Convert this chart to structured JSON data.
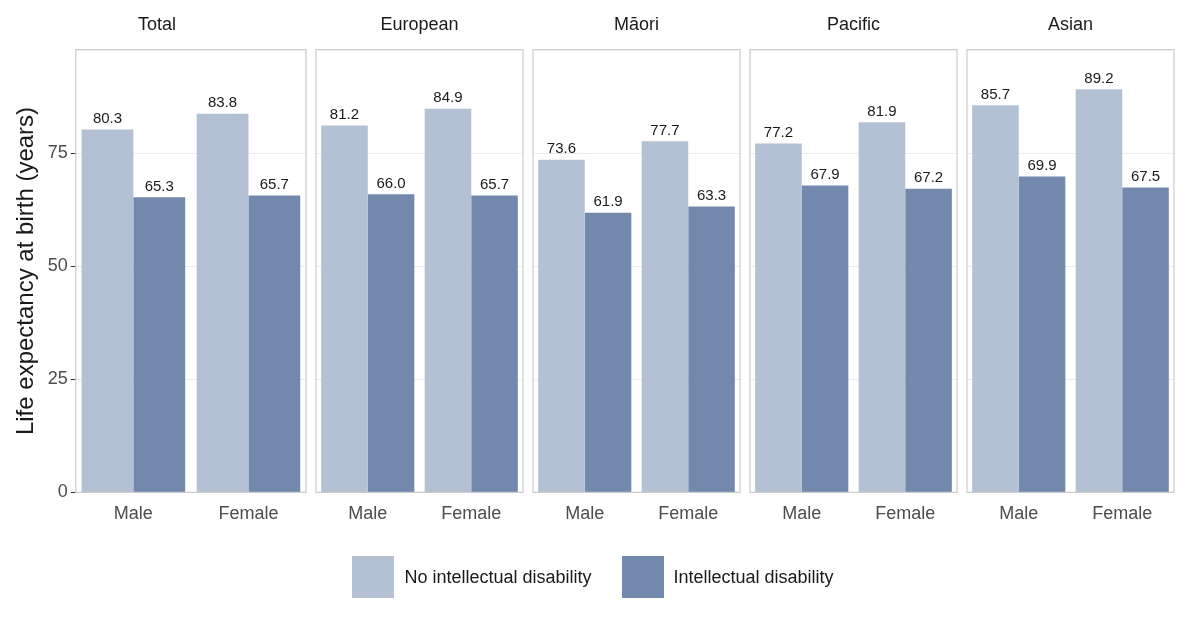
{
  "chart_data": [
    {
      "type": "bar",
      "title": "Total",
      "ylabel": "Life expectancy at birth (years)",
      "categories": [
        "Male",
        "Female"
      ],
      "ylim": [
        0,
        98
      ],
      "yticks": [
        0,
        25,
        50,
        75
      ],
      "grid": "y",
      "legend": "bottom",
      "series": [
        {
          "name": "No intellectual disability",
          "color": "#b4c0d3",
          "values": [
            80.3,
            83.8
          ],
          "value_labels": [
            "80.3",
            "83.8"
          ]
        },
        {
          "name": "Intellectual disability",
          "color": "#7288ac",
          "values": [
            65.3,
            65.7
          ],
          "value_labels": [
            "65.3",
            "65.7"
          ]
        }
      ]
    },
    {
      "type": "bar",
      "title": "European",
      "categories": [
        "Male",
        "Female"
      ],
      "ylim": [
        0,
        98
      ],
      "yticks": [
        0,
        25,
        50,
        75
      ],
      "grid": "y",
      "tick_labels": "x",
      "series": [
        {
          "color": "#b4c0d3",
          "values": [
            81.2,
            84.9
          ],
          "value_labels": [
            "81.2",
            "84.9"
          ]
        },
        {
          "color": "#7288ac",
          "values": [
            66.0,
            65.7
          ],
          "value_labels": [
            "66.0",
            "65.7"
          ]
        }
      ]
    },
    {
      "type": "bar",
      "title": "Māori",
      "categories": [
        "Male",
        "Female"
      ],
      "ylim": [
        0,
        98
      ],
      "yticks": [
        0,
        25,
        50,
        75
      ],
      "grid": "y",
      "tick_labels": "x",
      "series": [
        {
          "color": "#b4c0d3",
          "values": [
            73.6,
            77.7
          ],
          "value_labels": [
            "73.6",
            "77.7"
          ]
        },
        {
          "color": "#7288ac",
          "values": [
            61.9,
            63.3
          ],
          "value_labels": [
            "61.9",
            "63.3"
          ]
        }
      ]
    },
    {
      "type": "bar",
      "title": "Pacific",
      "categories": [
        "Male",
        "Female"
      ],
      "ylim": [
        0,
        98
      ],
      "yticks": [
        0,
        25,
        50,
        75
      ],
      "grid": "y",
      "tick_labels": "x",
      "series": [
        {
          "color": "#b4c0d3",
          "values": [
            77.2,
            81.9
          ],
          "value_labels": [
            "77.2",
            "81.9"
          ]
        },
        {
          "color": "#7288ac",
          "values": [
            67.9,
            67.2
          ],
          "value_labels": [
            "67.9",
            "67.2"
          ]
        }
      ]
    },
    {
      "type": "bar",
      "title": "Asian",
      "categories": [
        "Male",
        "Female"
      ],
      "ylim": [
        0,
        98
      ],
      "yticks": [
        0,
        25,
        50,
        75
      ],
      "grid": "y",
      "tick_labels": "x",
      "series": [
        {
          "color": "#b4c0d3",
          "values": [
            85.7,
            89.2
          ],
          "value_labels": [
            "85.7",
            "89.2"
          ]
        },
        {
          "color": "#7288ac",
          "values": [
            69.9,
            67.5
          ],
          "value_labels": [
            "69.9",
            "67.5"
          ]
        }
      ]
    }
  ]
}
